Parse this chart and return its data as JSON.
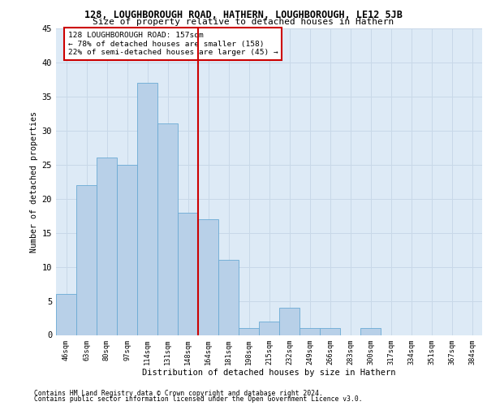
{
  "title1": "128, LOUGHBOROUGH ROAD, HATHERN, LOUGHBOROUGH, LE12 5JB",
  "title2": "Size of property relative to detached houses in Hathern",
  "xlabel": "Distribution of detached houses by size in Hathern",
  "ylabel": "Number of detached properties",
  "categories": [
    "46sqm",
    "63sqm",
    "80sqm",
    "97sqm",
    "114sqm",
    "131sqm",
    "148sqm",
    "164sqm",
    "181sqm",
    "198sqm",
    "215sqm",
    "232sqm",
    "249sqm",
    "266sqm",
    "283sqm",
    "300sqm",
    "317sqm",
    "334sqm",
    "351sqm",
    "367sqm",
    "384sqm"
  ],
  "values": [
    6,
    22,
    26,
    25,
    37,
    31,
    18,
    17,
    11,
    1,
    2,
    4,
    1,
    1,
    0,
    1,
    0,
    0,
    0,
    0,
    0
  ],
  "bar_color": "#b8d0e8",
  "bar_edge_color": "#6aaad4",
  "annotation_line1": "128 LOUGHBOROUGH ROAD: 157sqm",
  "annotation_line2": "← 78% of detached houses are smaller (158)",
  "annotation_line3": "22% of semi-detached houses are larger (45) →",
  "vline_color": "#cc0000",
  "annotation_box_edge": "#cc0000",
  "ylim": [
    0,
    45
  ],
  "yticks": [
    0,
    5,
    10,
    15,
    20,
    25,
    30,
    35,
    40,
    45
  ],
  "grid_color": "#c8d8e8",
  "background_color": "#ddeaf6",
  "footer1": "Contains HM Land Registry data © Crown copyright and database right 2024.",
  "footer2": "Contains public sector information licensed under the Open Government Licence v3.0."
}
